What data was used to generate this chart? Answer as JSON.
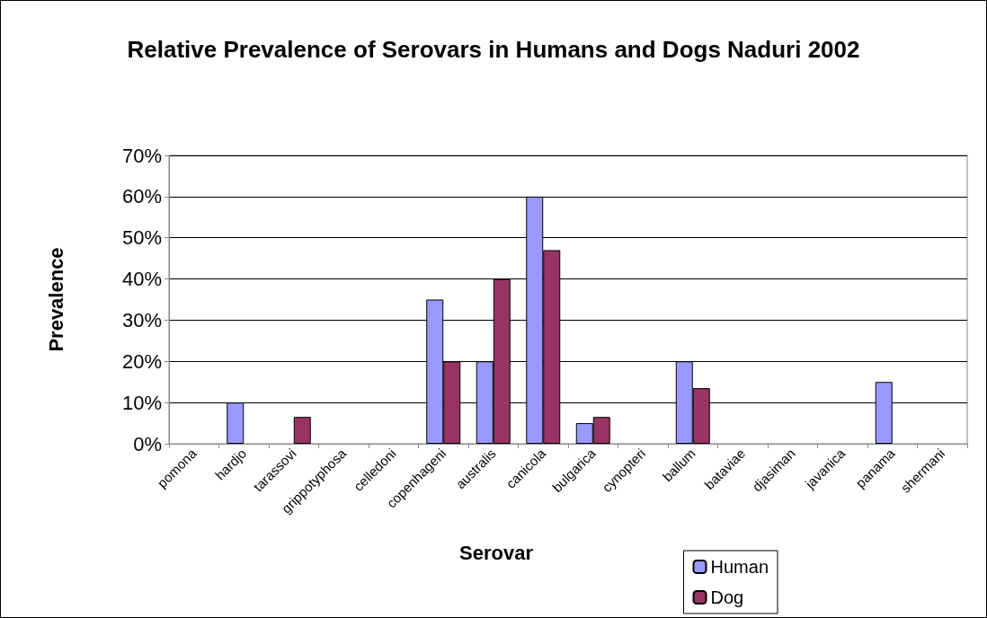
{
  "chart_data": {
    "type": "bar",
    "title": "Relative Prevalence of Serovars in Humans and Dogs Naduri 2002",
    "xlabel": "Serovar",
    "ylabel": "Prevalence",
    "categories": [
      "pomona",
      "hardjo",
      "tarassovi",
      "grippotyphosa",
      "celledoni",
      "copenhageni",
      "australis",
      "canicola",
      "bulgarica",
      "cynopteri",
      "ballum",
      "bataviae",
      "djasiman",
      "javanica",
      "panama",
      "shermani"
    ],
    "series": [
      {
        "name": "Human",
        "color": "#9999ff",
        "values": [
          null,
          10,
          null,
          null,
          null,
          35,
          20,
          60,
          5,
          null,
          20,
          null,
          null,
          null,
          15,
          null
        ]
      },
      {
        "name": "Dog",
        "color": "#993366",
        "values": [
          null,
          null,
          6.5,
          null,
          null,
          20,
          40,
          47,
          6.5,
          null,
          13.5,
          null,
          null,
          null,
          null,
          null
        ]
      }
    ],
    "ylim": [
      0,
      70
    ],
    "yticks": [
      {
        "value": 0,
        "label": "0%"
      },
      {
        "value": 10,
        "label": "10%"
      },
      {
        "value": 20,
        "label": "20%"
      },
      {
        "value": 30,
        "label": "30%"
      },
      {
        "value": 40,
        "label": "40%"
      },
      {
        "value": 50,
        "label": "50%"
      },
      {
        "value": 60,
        "label": "60%"
      },
      {
        "value": 70,
        "label": "70%"
      }
    ],
    "grid": "y",
    "legend": "bottom right"
  }
}
